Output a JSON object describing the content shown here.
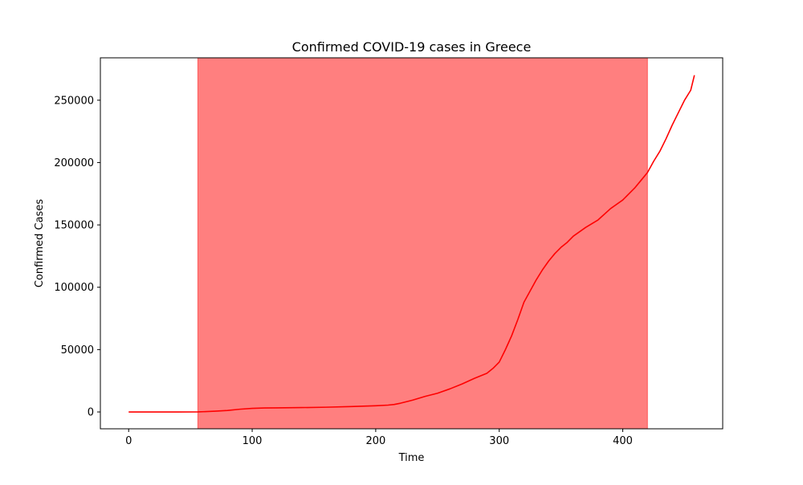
{
  "chart_data": {
    "type": "line",
    "title": "Confirmed COVID-19 cases in Greece",
    "xlabel": "Time",
    "ylabel": "Confirmed Cases",
    "xlim": [
      -22.9,
      480.9
    ],
    "ylim": [
      -13500,
      284000
    ],
    "xticks": [
      0,
      100,
      200,
      300,
      400
    ],
    "yticks": [
      0,
      50000,
      100000,
      150000,
      200000,
      250000
    ],
    "grid": false,
    "legend": "none",
    "shaded_region": {
      "x_start": 56,
      "x_end": 420,
      "color": "#ff0000",
      "opacity": 0.5
    },
    "series": [
      {
        "color": "#ff0000",
        "x": [
          0,
          20,
          40,
          56,
          70,
          80,
          90,
          100,
          110,
          120,
          140,
          160,
          180,
          200,
          210,
          215,
          220,
          230,
          240,
          250,
          260,
          270,
          280,
          290,
          295,
          300,
          305,
          310,
          315,
          320,
          325,
          330,
          335,
          340,
          345,
          350,
          355,
          360,
          370,
          380,
          390,
          400,
          405,
          410,
          415,
          420,
          425,
          430,
          435,
          440,
          445,
          450,
          455,
          458
        ],
        "y": [
          0,
          0,
          0,
          50,
          600,
          1200,
          2200,
          2900,
          3200,
          3300,
          3500,
          3800,
          4300,
          5000,
          5500,
          6000,
          7000,
          9500,
          12500,
          15000,
          18500,
          22500,
          27000,
          31000,
          35000,
          40000,
          50000,
          61000,
          74000,
          88000,
          97000,
          106000,
          114000,
          121000,
          127000,
          132000,
          136000,
          141000,
          148000,
          154000,
          163000,
          170000,
          175000,
          180000,
          186000,
          192000,
          201000,
          209000,
          219000,
          230000,
          240000,
          250000,
          258000,
          270000
        ]
      }
    ]
  }
}
